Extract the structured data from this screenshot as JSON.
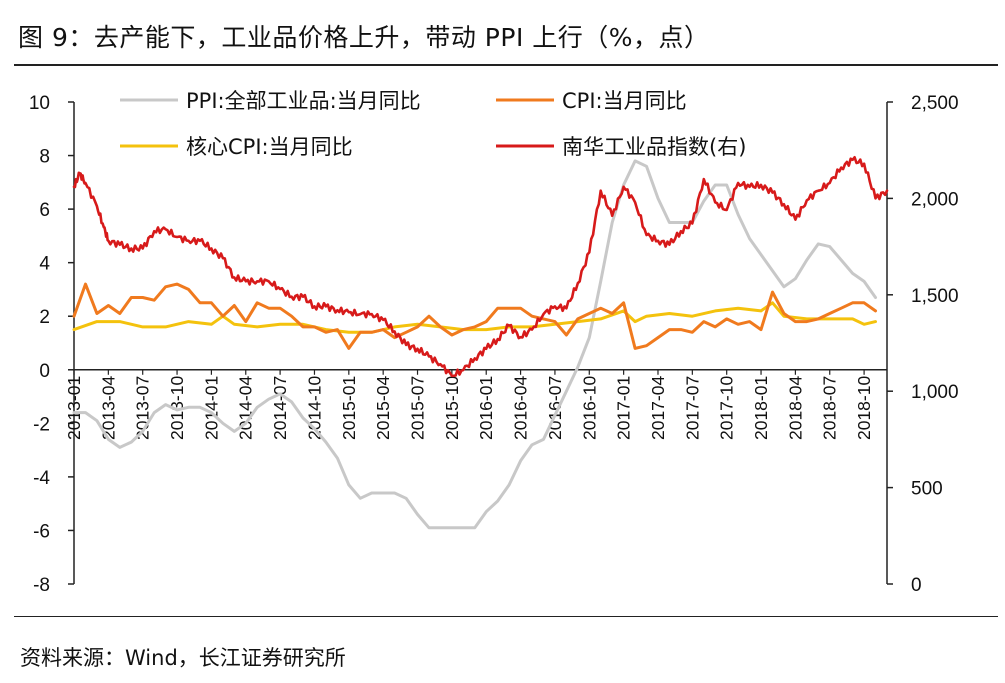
{
  "header": {
    "title": "图 9：去产能下，工业品价格上升，带动 PPI 上行（%，点）"
  },
  "footer": {
    "source": "资料来源：Wind，长江证券研究所"
  },
  "colors": {
    "ppi": "#c8c8c8",
    "cpi": "#f07a1e",
    "core_cpi": "#f4c20d",
    "nanhua": "#d71a1a",
    "axis": "#222222"
  },
  "chart_data": {
    "type": "line",
    "title": "去产能下，工业品价格上升，带动 PPI 上行（%，点）",
    "y_left": {
      "min": -8,
      "max": 10,
      "ticks": [
        10,
        8,
        6,
        4,
        2,
        0,
        -2,
        -4,
        -6,
        -8
      ]
    },
    "y_right": {
      "min": 0,
      "max": 2500,
      "ticks": [
        "2,500",
        "2,000",
        "1,500",
        "1,000",
        "500",
        "0"
      ]
    },
    "x_ticks": [
      "2013-01",
      "2013-04",
      "2013-07",
      "2013-10",
      "2014-01",
      "2014-04",
      "2014-07",
      "2014-10",
      "2015-01",
      "2015-04",
      "2015-07",
      "2015-10",
      "2016-01",
      "2016-04",
      "2016-07",
      "2016-10",
      "2017-01",
      "2017-04",
      "2017-07",
      "2017-10",
      "2018-01",
      "2018-04",
      "2018-07",
      "2018-10"
    ],
    "x_range_months": [
      0,
      71
    ],
    "legend_position": "top",
    "series": [
      {
        "name": "PPI:全部工业品:当月同比",
        "axis": "left",
        "color_key": "ppi",
        "points": [
          [
            0,
            -1.6
          ],
          [
            1,
            -1.6
          ],
          [
            2,
            -1.9
          ],
          [
            3,
            -2.6
          ],
          [
            4,
            -2.9
          ],
          [
            5,
            -2.7
          ],
          [
            6,
            -2.3
          ],
          [
            7,
            -1.6
          ],
          [
            8,
            -1.3
          ],
          [
            9,
            -1.5
          ],
          [
            10,
            -1.4
          ],
          [
            11,
            -1.4
          ],
          [
            12,
            -1.6
          ],
          [
            13,
            -2.0
          ],
          [
            14,
            -2.3
          ],
          [
            15,
            -2.0
          ],
          [
            16,
            -1.4
          ],
          [
            17,
            -1.1
          ],
          [
            18,
            -0.9
          ],
          [
            19,
            -1.2
          ],
          [
            20,
            -1.8
          ],
          [
            21,
            -2.2
          ],
          [
            22,
            -2.7
          ],
          [
            23,
            -3.3
          ],
          [
            24,
            -4.3
          ],
          [
            25,
            -4.8
          ],
          [
            26,
            -4.6
          ],
          [
            27,
            -4.6
          ],
          [
            28,
            -4.6
          ],
          [
            29,
            -4.8
          ],
          [
            30,
            -5.4
          ],
          [
            31,
            -5.9
          ],
          [
            32,
            -5.9
          ],
          [
            33,
            -5.9
          ],
          [
            34,
            -5.9
          ],
          [
            35,
            -5.9
          ],
          [
            36,
            -5.3
          ],
          [
            37,
            -4.9
          ],
          [
            38,
            -4.3
          ],
          [
            39,
            -3.4
          ],
          [
            40,
            -2.8
          ],
          [
            41,
            -2.6
          ],
          [
            42,
            -1.7
          ],
          [
            43,
            -0.8
          ],
          [
            44,
            0.1
          ],
          [
            45,
            1.2
          ],
          [
            46,
            3.3
          ],
          [
            47,
            5.5
          ],
          [
            48,
            6.9
          ],
          [
            49,
            7.8
          ],
          [
            50,
            7.6
          ],
          [
            51,
            6.4
          ],
          [
            52,
            5.5
          ],
          [
            53,
            5.5
          ],
          [
            54,
            5.5
          ],
          [
            55,
            6.3
          ],
          [
            56,
            6.9
          ],
          [
            57,
            6.9
          ],
          [
            58,
            5.8
          ],
          [
            59,
            4.9
          ],
          [
            60,
            4.3
          ],
          [
            61,
            3.7
          ],
          [
            62,
            3.1
          ],
          [
            63,
            3.4
          ],
          [
            64,
            4.1
          ],
          [
            65,
            4.7
          ],
          [
            66,
            4.6
          ],
          [
            67,
            4.1
          ],
          [
            68,
            3.6
          ],
          [
            69,
            3.3
          ],
          [
            70,
            2.7
          ]
        ]
      },
      {
        "name": "CPI:当月同比",
        "axis": "left",
        "color_key": "cpi",
        "points": [
          [
            0,
            2.0
          ],
          [
            1,
            3.2
          ],
          [
            2,
            2.1
          ],
          [
            3,
            2.4
          ],
          [
            4,
            2.1
          ],
          [
            5,
            2.7
          ],
          [
            6,
            2.7
          ],
          [
            7,
            2.6
          ],
          [
            8,
            3.1
          ],
          [
            9,
            3.2
          ],
          [
            10,
            3.0
          ],
          [
            11,
            2.5
          ],
          [
            12,
            2.5
          ],
          [
            13,
            2.0
          ],
          [
            14,
            2.4
          ],
          [
            15,
            1.8
          ],
          [
            16,
            2.5
          ],
          [
            17,
            2.3
          ],
          [
            18,
            2.3
          ],
          [
            19,
            2.0
          ],
          [
            20,
            1.6
          ],
          [
            21,
            1.6
          ],
          [
            22,
            1.4
          ],
          [
            23,
            1.5
          ],
          [
            24,
            0.8
          ],
          [
            25,
            1.4
          ],
          [
            26,
            1.4
          ],
          [
            27,
            1.5
          ],
          [
            28,
            1.2
          ],
          [
            29,
            1.4
          ],
          [
            30,
            1.6
          ],
          [
            31,
            2.0
          ],
          [
            32,
            1.6
          ],
          [
            33,
            1.3
          ],
          [
            34,
            1.5
          ],
          [
            35,
            1.6
          ],
          [
            36,
            1.8
          ],
          [
            37,
            2.3
          ],
          [
            38,
            2.3
          ],
          [
            39,
            2.3
          ],
          [
            40,
            2.0
          ],
          [
            41,
            1.9
          ],
          [
            42,
            1.8
          ],
          [
            43,
            1.3
          ],
          [
            44,
            1.9
          ],
          [
            45,
            2.1
          ],
          [
            46,
            2.3
          ],
          [
            47,
            2.1
          ],
          [
            48,
            2.5
          ],
          [
            49,
            0.8
          ],
          [
            50,
            0.9
          ],
          [
            51,
            1.2
          ],
          [
            52,
            1.5
          ],
          [
            53,
            1.5
          ],
          [
            54,
            1.4
          ],
          [
            55,
            1.8
          ],
          [
            56,
            1.6
          ],
          [
            57,
            1.9
          ],
          [
            58,
            1.7
          ],
          [
            59,
            1.8
          ],
          [
            60,
            1.5
          ],
          [
            61,
            2.9
          ],
          [
            62,
            2.1
          ],
          [
            63,
            1.8
          ],
          [
            64,
            1.8
          ],
          [
            65,
            1.9
          ],
          [
            66,
            2.1
          ],
          [
            67,
            2.3
          ],
          [
            68,
            2.5
          ],
          [
            69,
            2.5
          ],
          [
            70,
            2.2
          ]
        ]
      },
      {
        "name": "核心CPI:当月同比",
        "axis": "left",
        "color_key": "core_cpi",
        "points": [
          [
            0,
            1.5
          ],
          [
            2,
            1.8
          ],
          [
            4,
            1.8
          ],
          [
            6,
            1.6
          ],
          [
            8,
            1.6
          ],
          [
            10,
            1.8
          ],
          [
            12,
            1.7
          ],
          [
            13,
            2.0
          ],
          [
            14,
            1.7
          ],
          [
            16,
            1.6
          ],
          [
            18,
            1.7
          ],
          [
            20,
            1.7
          ],
          [
            22,
            1.5
          ],
          [
            24,
            1.4
          ],
          [
            26,
            1.4
          ],
          [
            28,
            1.6
          ],
          [
            30,
            1.7
          ],
          [
            32,
            1.6
          ],
          [
            34,
            1.5
          ],
          [
            36,
            1.5
          ],
          [
            38,
            1.6
          ],
          [
            40,
            1.6
          ],
          [
            42,
            1.7
          ],
          [
            44,
            1.8
          ],
          [
            46,
            1.9
          ],
          [
            48,
            2.2
          ],
          [
            49,
            1.8
          ],
          [
            50,
            2.0
          ],
          [
            52,
            2.1
          ],
          [
            54,
            2.0
          ],
          [
            56,
            2.2
          ],
          [
            58,
            2.3
          ],
          [
            60,
            2.2
          ],
          [
            61,
            2.5
          ],
          [
            62,
            2.0
          ],
          [
            64,
            1.9
          ],
          [
            66,
            1.9
          ],
          [
            68,
            1.9
          ],
          [
            69,
            1.7
          ],
          [
            70,
            1.8
          ]
        ]
      },
      {
        "name": "南华工业品指数(右)",
        "axis": "right",
        "color_key": "nanhua",
        "points": [
          [
            0,
            2060
          ],
          [
            0.5,
            2130
          ],
          [
            1,
            2080
          ],
          [
            2,
            1960
          ],
          [
            2.6,
            1850
          ],
          [
            3,
            1780
          ],
          [
            4,
            1760
          ],
          [
            5,
            1740
          ],
          [
            6,
            1740
          ],
          [
            7,
            1830
          ],
          [
            8,
            1840
          ],
          [
            9,
            1800
          ],
          [
            10,
            1780
          ],
          [
            11,
            1780
          ],
          [
            12,
            1740
          ],
          [
            13,
            1690
          ],
          [
            14,
            1590
          ],
          [
            15,
            1570
          ],
          [
            16,
            1570
          ],
          [
            17,
            1570
          ],
          [
            18,
            1530
          ],
          [
            19,
            1490
          ],
          [
            20,
            1490
          ],
          [
            21,
            1440
          ],
          [
            22,
            1440
          ],
          [
            23,
            1420
          ],
          [
            24,
            1410
          ],
          [
            25,
            1400
          ],
          [
            26,
            1400
          ],
          [
            27,
            1370
          ],
          [
            28,
            1310
          ],
          [
            29,
            1240
          ],
          [
            30,
            1220
          ],
          [
            31,
            1180
          ],
          [
            32,
            1140
          ],
          [
            33,
            1080
          ],
          [
            34,
            1110
          ],
          [
            35,
            1170
          ],
          [
            36,
            1220
          ],
          [
            37,
            1270
          ],
          [
            38,
            1340
          ],
          [
            39,
            1280
          ],
          [
            40,
            1320
          ],
          [
            41,
            1400
          ],
          [
            42,
            1440
          ],
          [
            43,
            1430
          ],
          [
            44,
            1560
          ],
          [
            45,
            1720
          ],
          [
            46,
            2040
          ],
          [
            47,
            1910
          ],
          [
            48,
            2060
          ],
          [
            49,
            1980
          ],
          [
            50,
            1810
          ],
          [
            51,
            1780
          ],
          [
            52,
            1760
          ],
          [
            53,
            1830
          ],
          [
            54,
            1870
          ],
          [
            55,
            2100
          ],
          [
            56,
            1980
          ],
          [
            57,
            1940
          ],
          [
            58,
            2080
          ],
          [
            59,
            2060
          ],
          [
            60,
            2070
          ],
          [
            61,
            2030
          ],
          [
            62,
            1970
          ],
          [
            63,
            1890
          ],
          [
            64,
            1990
          ],
          [
            65,
            2040
          ],
          [
            66,
            2080
          ],
          [
            67,
            2160
          ],
          [
            68,
            2200
          ],
          [
            69,
            2180
          ],
          [
            70,
            2000
          ],
          [
            71,
            2040
          ]
        ]
      }
    ]
  }
}
